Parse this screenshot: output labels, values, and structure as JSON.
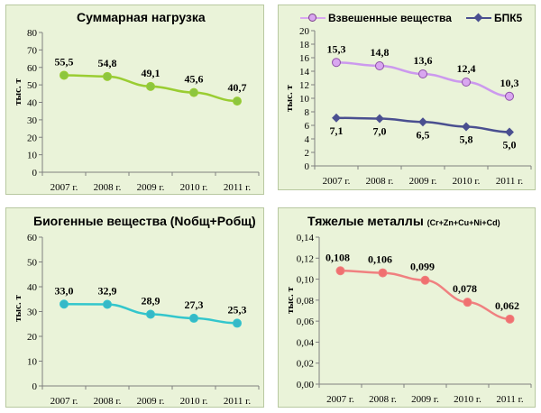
{
  "chart_data": [
    {
      "type": "line",
      "title": "Суммарная нагрузка",
      "title_sub": "",
      "ylabel": "тыс. т",
      "categories": [
        "2007 г.",
        "2008 г.",
        "2009 г.",
        "2010 г.",
        "2011 г."
      ],
      "ylim": [
        0,
        80
      ],
      "yticks": [
        "0",
        "10",
        "20",
        "30",
        "40",
        "50",
        "60",
        "70",
        "80"
      ],
      "series": [
        {
          "name": "",
          "values": [
            55.5,
            54.8,
            49.1,
            45.6,
            40.7
          ],
          "labels": [
            "55,5",
            "54,8",
            "49,1",
            "45,6",
            "40,7"
          ],
          "color": "#9acd32",
          "marker_color": "#8dc63f",
          "marker": "circle"
        }
      ],
      "legend": [],
      "grid": false
    },
    {
      "type": "line",
      "title": "",
      "title_sub": "",
      "ylabel": "тыс. т",
      "categories": [
        "2007 г.",
        "2008 г.",
        "2009 г.",
        "2010 г.",
        "2011 г."
      ],
      "ylim": [
        0,
        20
      ],
      "yticks": [
        "0",
        "2",
        "4",
        "6",
        "8",
        "10",
        "12",
        "14",
        "16",
        "18",
        "20"
      ],
      "series": [
        {
          "name": "Взвешенные вещества",
          "values": [
            15.3,
            14.8,
            13.6,
            12.4,
            10.3
          ],
          "labels": [
            "15,3",
            "14,8",
            "13,6",
            "12,4",
            "10,3"
          ],
          "color": "#cc99ee",
          "marker_color": "#d9a6f0",
          "marker": "circle"
        },
        {
          "name": "БПК5",
          "values": [
            7.1,
            7.0,
            6.5,
            5.8,
            5.0
          ],
          "labels": [
            "7,1",
            "7,0",
            "6,5",
            "5,8",
            "5,0"
          ],
          "color": "#4a4f90",
          "marker_color": "#4a4f90",
          "marker": "diamond"
        }
      ],
      "legend": [
        "Взвешенные вещества",
        "БПК5"
      ],
      "grid": false
    },
    {
      "type": "line",
      "title": "Биогенные вещества (Nобщ+Pобщ)",
      "title_sub": "",
      "ylabel": "тыс. т",
      "categories": [
        "2007 г.",
        "2008 г.",
        "2009 г.",
        "2010 г.",
        "2011 г."
      ],
      "ylim": [
        0,
        60
      ],
      "yticks": [
        "0",
        "10",
        "20",
        "30",
        "40",
        "50",
        "60"
      ],
      "series": [
        {
          "name": "",
          "values": [
            33.0,
            32.9,
            28.9,
            27.3,
            25.3
          ],
          "labels": [
            "33,0",
            "32,9",
            "28,9",
            "27,3",
            "25,3"
          ],
          "color": "#33c6cc",
          "marker_color": "#36b8c8",
          "marker": "circle"
        }
      ],
      "legend": [],
      "grid": false
    },
    {
      "type": "line",
      "title": "Тяжелые металлы",
      "title_sub": "(Cr+Zn+Cu+Ni+Cd)",
      "ylabel": "тыс. т",
      "categories": [
        "2007 г.",
        "2008 г.",
        "2009 г.",
        "2010 г.",
        "2011 г."
      ],
      "ylim": [
        0,
        0.14
      ],
      "yticks": [
        "0,00",
        "0,02",
        "0,04",
        "0,06",
        "0,08",
        "0,10",
        "0,12",
        "0,14"
      ],
      "series": [
        {
          "name": "",
          "values": [
            0.108,
            0.106,
            0.099,
            0.078,
            0.062
          ],
          "labels": [
            "0,108",
            "0,106",
            "0,099",
            "0,078",
            "0,062"
          ],
          "color": "#f08080",
          "marker_color": "#f07070",
          "marker": "circle"
        }
      ],
      "legend": [],
      "grid": false
    }
  ]
}
